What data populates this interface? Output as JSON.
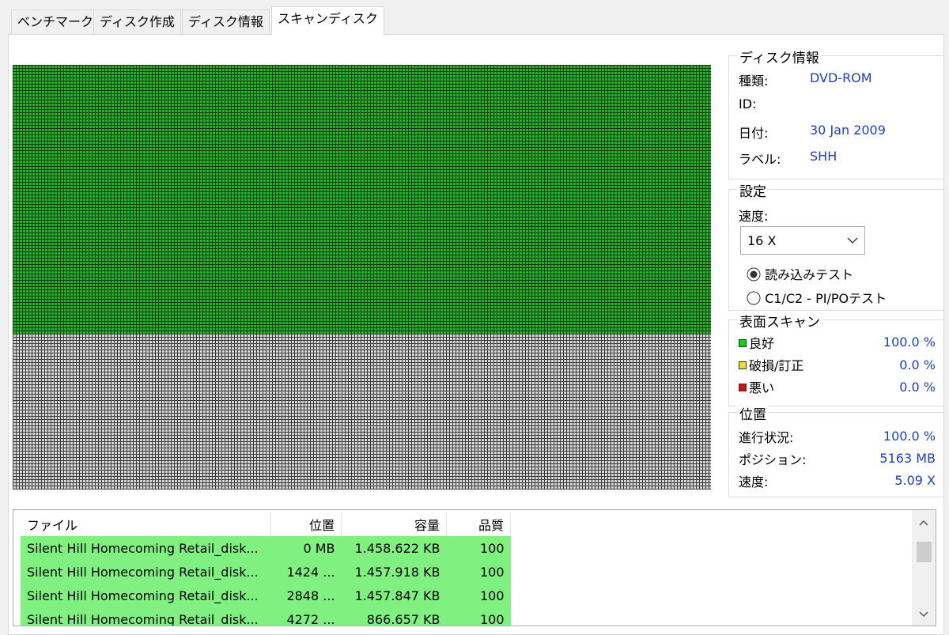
{
  "tabs": [
    "ベンチマーク",
    "ディスク作成",
    "ディスク情報",
    "スキャンディスク"
  ],
  "disk_info": {
    "title": "ディスク情報",
    "rows": [
      {
        "label": "種類:",
        "value": "DVD-ROM"
      },
      {
        "label": "ID:"
      },
      {
        "label": "日付:",
        "value": "30 Jan 2009"
      },
      {
        "label": "ラベル:",
        "value": "SHH"
      }
    ]
  },
  "settings": {
    "title": "設定",
    "speed_label": "速度:",
    "speed": "16 X",
    "options": [
      "読み込みテスト",
      "C1/C2 - PI/POテスト"
    ]
  },
  "surface_scan": {
    "title": "表面スキャン",
    "rows": [
      {
        "label": "良好",
        "value": "100.0 %"
      },
      {
        "label": "破損/訂正",
        "value": "0.0 %"
      },
      {
        "label": "悪い",
        "value": "0.0 %"
      }
    ]
  },
  "position": {
    "title": "位置",
    "rows": [
      {
        "label": "進行状況:",
        "value": "100.0 %"
      },
      {
        "label": "ポジション:",
        "value": "5163 MB"
      },
      {
        "label": "速度:",
        "value": "5.09 X"
      }
    ]
  },
  "file_list": {
    "columns": [
      "ファイル",
      "位置",
      "容量",
      "品質"
    ],
    "rows": [
      [
        "Silent Hill Homecoming Retail_disk...",
        "0 MB",
        "1.458.622 KB",
        "100"
      ],
      [
        "Silent Hill Homecoming Retail_disk...",
        "1424 ...",
        "1.457.918 KB",
        "100"
      ],
      [
        "Silent Hill Homecoming Retail_disk...",
        "2848 ...",
        "1.457.847 KB",
        "100"
      ],
      [
        "Silent Hill Homecoming Retail_disk...",
        "4272 ...",
        "866.657 KB",
        "100"
      ]
    ]
  }
}
